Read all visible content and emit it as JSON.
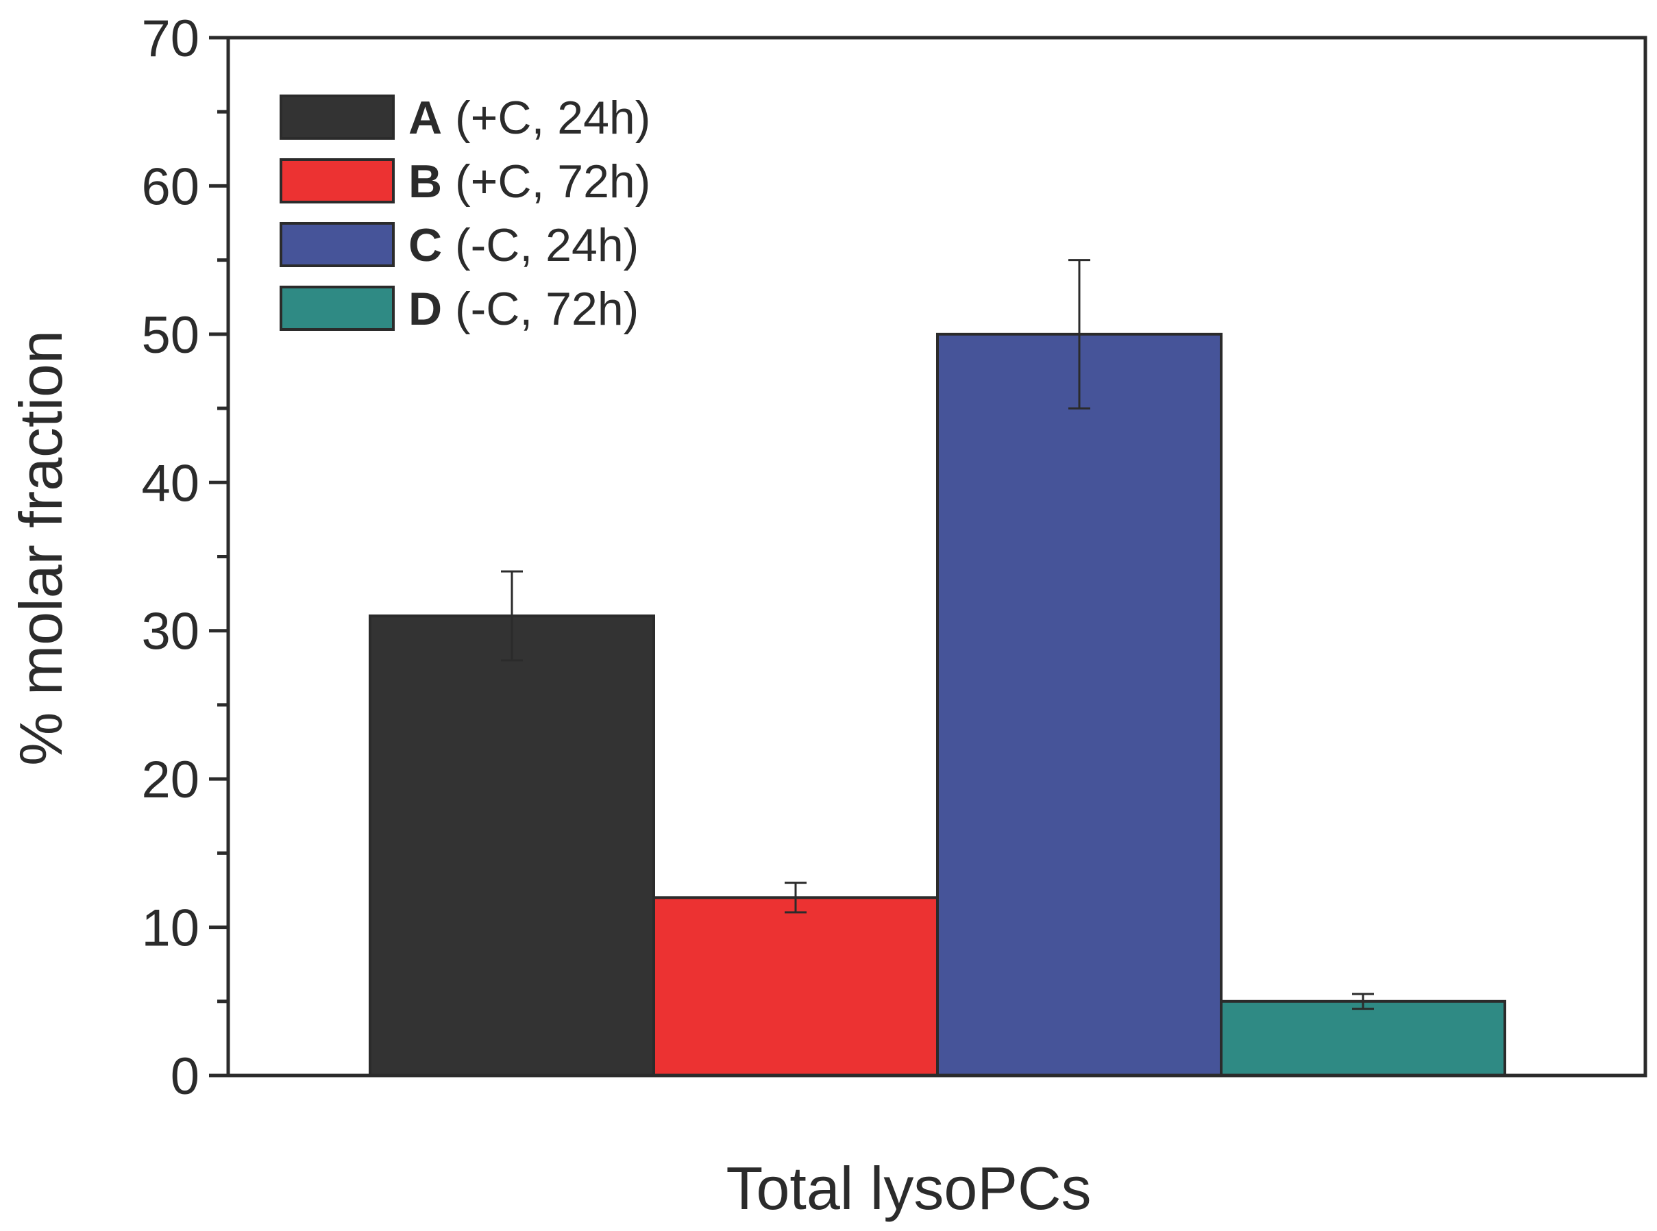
{
  "chart_data": {
    "type": "bar",
    "title": "",
    "xlabel": "Total lysoPCs",
    "ylabel": "% molar fraction",
    "ylim": [
      0,
      70
    ],
    "yticks": [
      0,
      10,
      20,
      30,
      40,
      50,
      60,
      70
    ],
    "yticks_labels": [
      "0",
      "10",
      "20",
      "30",
      "40",
      "50",
      "60",
      "70"
    ],
    "minor_tick_step": 5,
    "categories": [
      "Total lysoPCs"
    ],
    "series": [
      {
        "key": "A",
        "name": "(+C, 24h)",
        "values": [
          31
        ],
        "error": [
          3
        ],
        "color": "#333333"
      },
      {
        "key": "B",
        "name": "(+C, 72h)",
        "values": [
          12
        ],
        "error": [
          1
        ],
        "color": "#ec3232"
      },
      {
        "key": "C",
        "name": "(-C, 24h)",
        "values": [
          50
        ],
        "error": [
          5
        ],
        "color": "#465499"
      },
      {
        "key": "D",
        "name": "(-C, 72h)",
        "values": [
          5
        ],
        "error": [
          0.5
        ],
        "color": "#2f8a84"
      }
    ],
    "legend_position": "top-left",
    "grid": false
  }
}
